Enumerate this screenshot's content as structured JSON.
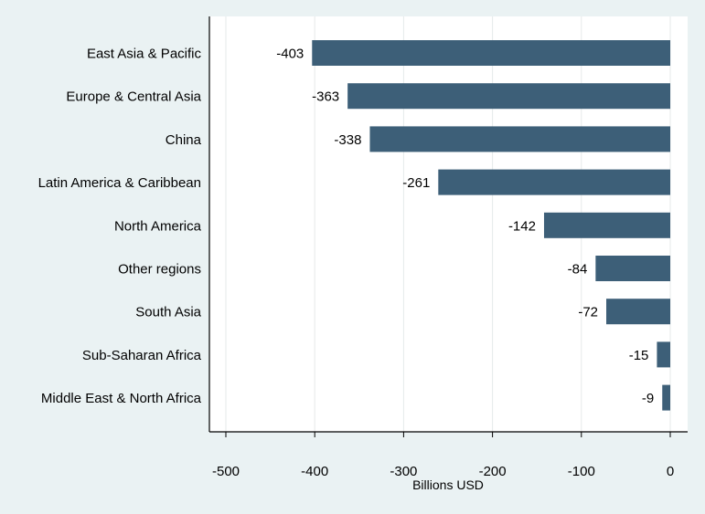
{
  "chart_data": {
    "type": "bar",
    "orientation": "horizontal",
    "categories": [
      "East Asia & Pacific",
      "Europe & Central Asia",
      "China",
      "Latin America & Caribbean",
      "North America",
      "Other regions",
      "South Asia",
      "Sub-Saharan Africa",
      "Middle East & North Africa"
    ],
    "values": [
      -403,
      -363,
      -338,
      -261,
      -142,
      -84,
      -72,
      -15,
      -9
    ],
    "data_labels": [
      "-403",
      "-363",
      "-338",
      "-261",
      "-142",
      "-84",
      "-72",
      "-15",
      "-9"
    ],
    "title": "",
    "xlabel": "Billions USD",
    "ylabel": "",
    "xlim": [
      -520,
      0
    ],
    "xticks": [
      -500,
      -400,
      -300,
      -200,
      -100,
      0
    ],
    "xtick_labels": [
      "-500",
      "-400",
      "-300",
      "-200",
      "-100",
      "0"
    ],
    "grid": "vertical",
    "legend": "none",
    "colors": {
      "background": "#eaf2f3",
      "plot_background": "#ffffff",
      "bar": "#3d5f78",
      "grid": "#e6eaea",
      "axis": "#000000"
    }
  }
}
